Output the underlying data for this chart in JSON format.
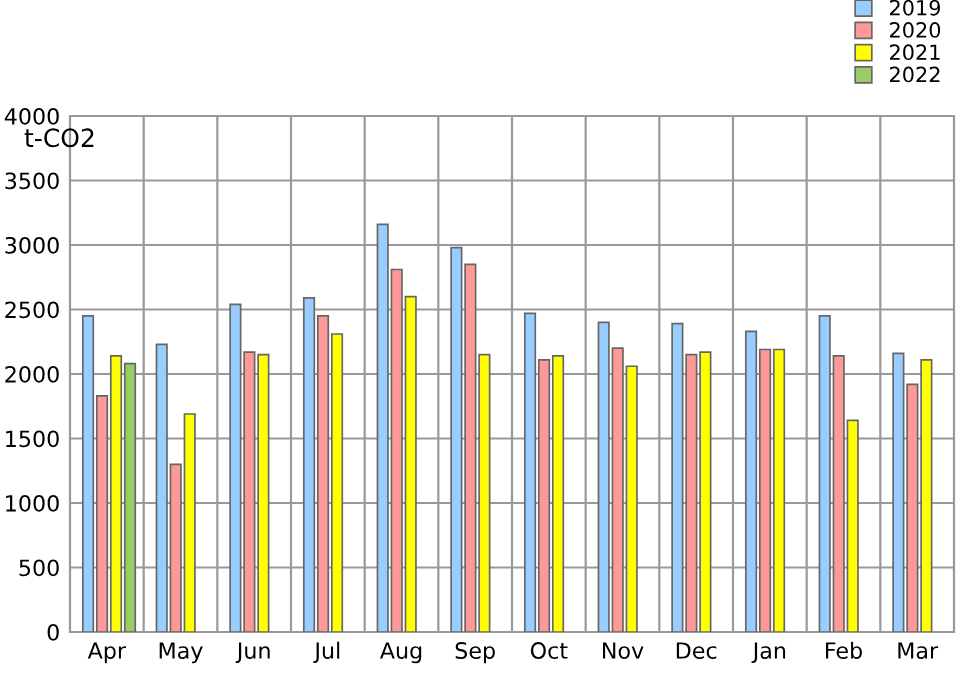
{
  "chart_data": {
    "type": "bar",
    "ylabel": "t-CO2",
    "categories": [
      "Apr",
      "May",
      "Jun",
      "Jul",
      "Aug",
      "Sep",
      "Oct",
      "Nov",
      "Dec",
      "Jan",
      "Feb",
      "Mar"
    ],
    "series": [
      {
        "name": "2019",
        "color": "#99ccff",
        "values": [
          2450,
          2230,
          2540,
          2590,
          3160,
          2980,
          2470,
          2400,
          2390,
          2330,
          2450,
          2160
        ]
      },
      {
        "name": "2020",
        "color": "#ff9999",
        "values": [
          1830,
          1300,
          2170,
          2450,
          2810,
          2850,
          2110,
          2200,
          2150,
          2190,
          2140,
          1920
        ]
      },
      {
        "name": "2021",
        "color": "#ffff00",
        "values": [
          2140,
          1690,
          2150,
          2310,
          2600,
          2150,
          2140,
          2060,
          2170,
          2190,
          1640,
          2110
        ]
      },
      {
        "name": "2022",
        "color": "#99cc66",
        "values": [
          2080,
          null,
          null,
          null,
          null,
          null,
          null,
          null,
          null,
          null,
          null,
          null
        ]
      }
    ],
    "ylim": [
      0,
      4000
    ],
    "yticks": [
      0,
      500,
      1000,
      1500,
      2000,
      2500,
      3000,
      3500,
      4000
    ],
    "grid": true,
    "legend": "top right"
  }
}
